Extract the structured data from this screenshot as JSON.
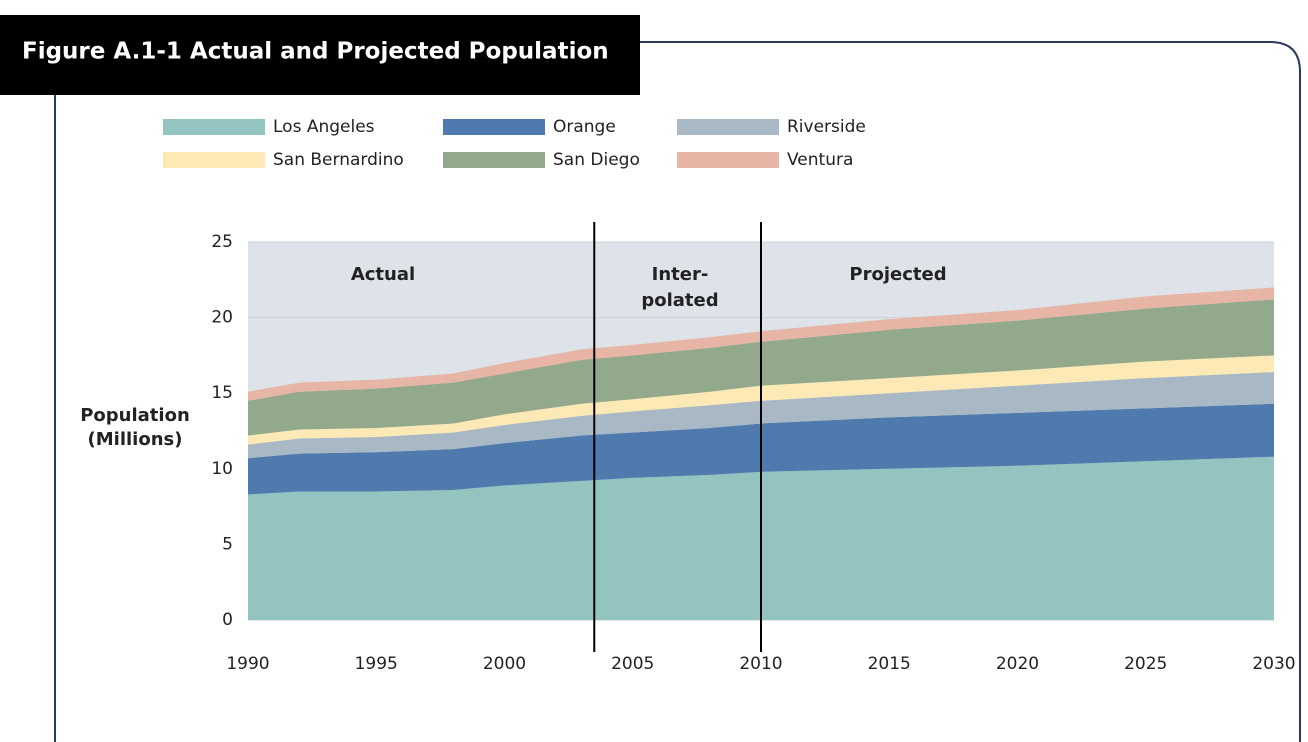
{
  "chart_data": {
    "type": "stacked_area",
    "title": "Figure A.1-1  Actual and Projected Population",
    "ylabel": [
      "Population",
      "(Millions)"
    ],
    "x": [
      1990,
      1992,
      1995,
      1998,
      2000,
      2003,
      2005,
      2008,
      2010,
      2015,
      2020,
      2025,
      2030
    ],
    "xlim": [
      1990,
      2030
    ],
    "xticks": [
      1990,
      1995,
      2000,
      2005,
      2010,
      2015,
      2020,
      2025,
      2030
    ],
    "ylim": [
      0,
      25
    ],
    "yticks": [
      0,
      5,
      10,
      15,
      20,
      25
    ],
    "grid": true,
    "dividers": [
      2003.5,
      2010
    ],
    "region_labels": [
      [
        "Actual"
      ],
      [
        "Inter-",
        "polated"
      ],
      [
        "Projected"
      ]
    ],
    "series": [
      {
        "name": "Los Angeles",
        "color": "#93c4bf",
        "values": [
          8.3,
          8.5,
          8.5,
          8.6,
          8.9,
          9.2,
          9.4,
          9.6,
          9.8,
          10.0,
          10.2,
          10.5,
          10.8
        ]
      },
      {
        "name": "Orange",
        "color": "#4f7aad",
        "values": [
          2.4,
          2.5,
          2.6,
          2.7,
          2.8,
          3.0,
          3.0,
          3.1,
          3.2,
          3.4,
          3.5,
          3.5,
          3.5
        ]
      },
      {
        "name": "Riverside",
        "color": "#a9b8c5",
        "values": [
          0.9,
          1.0,
          1.0,
          1.1,
          1.2,
          1.3,
          1.4,
          1.5,
          1.5,
          1.6,
          1.8,
          2.0,
          2.1
        ]
      },
      {
        "name": "San Bernardino",
        "color": "#fde9b5",
        "values": [
          0.6,
          0.6,
          0.6,
          0.6,
          0.7,
          0.8,
          0.8,
          0.9,
          1.0,
          1.0,
          1.0,
          1.1,
          1.1
        ]
      },
      {
        "name": "San Diego",
        "color": "#93a98c",
        "values": [
          2.3,
          2.5,
          2.6,
          2.7,
          2.7,
          2.9,
          2.9,
          2.9,
          2.9,
          3.2,
          3.3,
          3.5,
          3.7
        ]
      },
      {
        "name": "Ventura",
        "color": "#e6b5a6",
        "values": [
          0.6,
          0.6,
          0.6,
          0.6,
          0.7,
          0.7,
          0.7,
          0.7,
          0.7,
          0.7,
          0.7,
          0.8,
          0.8
        ]
      }
    ]
  }
}
